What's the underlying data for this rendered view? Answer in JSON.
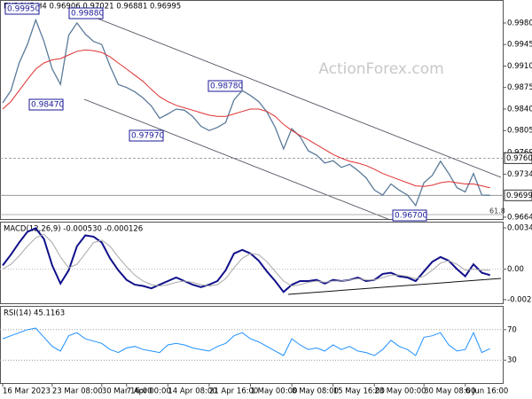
{
  "chart_data": [
    {
      "type": "line",
      "title": "EURCHF,H4  0.96906 0.97021 0.96881 0.96995",
      "watermark": "ActionForex.com",
      "categories": [
        "16 Mar 2023",
        null,
        null,
        null,
        null,
        null,
        "23 Mar 08:00",
        null,
        null,
        null,
        null,
        null,
        "30 Mar 16:00",
        null,
        null,
        "7 Apr 00:00",
        null,
        null,
        null,
        null,
        "14 Apr 08:00",
        null,
        null,
        null,
        null,
        "21 Apr 16:00",
        null,
        null,
        null,
        null,
        "1 May 00:00",
        null,
        null,
        null,
        null,
        "8 May 08:00",
        null,
        null,
        null,
        null,
        "15 May 16:00",
        null,
        null,
        null,
        null,
        "23 May 00:00",
        null,
        null,
        null,
        null,
        null,
        "30 May 08:00",
        null,
        null,
        null,
        null,
        "6 Jun 16:00",
        null,
        null,
        null
      ],
      "series": [
        {
          "color": "#5b7a99",
          "values": [
            0.985,
            0.987,
            0.9915,
            0.9945,
            0.9985,
            0.995,
            0.9905,
            0.988,
            0.996,
            0.998,
            0.9962,
            0.995,
            0.9945,
            0.991,
            0.988,
            0.9875,
            0.9868,
            0.9858,
            0.9845,
            0.9825,
            0.9832,
            0.984,
            0.9838,
            0.9828,
            0.9812,
            0.9805,
            0.981,
            0.9818,
            0.9855,
            0.987,
            0.9862,
            0.9852,
            0.9835,
            0.981,
            0.9775,
            0.9808,
            0.9795,
            0.9772,
            0.9765,
            0.9752,
            0.9756,
            0.9745,
            0.975,
            0.974,
            0.9728,
            0.9708,
            0.97,
            0.9718,
            0.9708,
            0.97,
            0.9683,
            0.972,
            0.9732,
            0.9755,
            0.9735,
            0.9712,
            0.9705,
            0.9735,
            0.97,
            0.96995
          ]
        },
        {
          "color": "#e03030",
          "values": [
            0.984,
            0.9852,
            0.987,
            0.9888,
            0.9905,
            0.9915,
            0.992,
            0.9922,
            0.9928,
            0.9934,
            0.9936,
            0.9935,
            0.9932,
            0.9925,
            0.9915,
            0.9905,
            0.9895,
            0.9885,
            0.9872,
            0.986,
            0.9852,
            0.9846,
            0.9842,
            0.9838,
            0.9834,
            0.983,
            0.9828,
            0.9828,
            0.9832,
            0.9836,
            0.984,
            0.984,
            0.9836,
            0.9828,
            0.9815,
            0.9805,
            0.9797,
            0.979,
            0.9782,
            0.9774,
            0.9766,
            0.976,
            0.9755,
            0.9752,
            0.9748,
            0.9742,
            0.9735,
            0.973,
            0.9725,
            0.972,
            0.9715,
            0.9714,
            0.9716,
            0.972,
            0.9722,
            0.972,
            0.9718,
            0.9718,
            0.9715,
            0.9712
          ]
        }
      ],
      "ylim": [
        0.9661,
        1.0016
      ],
      "yticks": [
        {
          "value": 0.998,
          "label": "0.99800"
        },
        {
          "value": 0.9945,
          "label": "0.99450"
        },
        {
          "value": 0.991,
          "label": "0.99100"
        },
        {
          "value": 0.9875,
          "label": "0.98750"
        },
        {
          "value": 0.984,
          "label": "0.98400"
        },
        {
          "value": 0.9805,
          "label": "0.98050"
        },
        {
          "value": 0.9769,
          "label": "0.97690"
        },
        {
          "value": 0.9734,
          "label": "0.97340"
        },
        {
          "value": 0.9664,
          "label": "0.96640"
        }
      ],
      "levels": [
        {
          "value": 0.976,
          "label": "0.97600"
        },
        {
          "value": 0.96995,
          "label": "0.96995"
        }
      ],
      "annotations": [
        "0.99950",
        "0.99880",
        "0.98470",
        "0.98780",
        "0.97970",
        "0.96700",
        "61.8"
      ]
    },
    {
      "type": "line",
      "title": "MACD(12,26,9) -0.000530 -0.000126",
      "series": [
        {
          "color": "#10108a",
          "values": [
            0.0003,
            0.0012,
            0.0022,
            0.0031,
            0.0034,
            0.0025,
            0.0003,
            -0.0012,
            -0.0001,
            0.0019,
            0.0028,
            0.0027,
            0.0022,
            0.0009,
            -0.0001,
            -0.0009,
            -0.0013,
            -0.0014,
            -0.0016,
            -0.0013,
            -0.001,
            -0.0007,
            -0.001,
            -0.0013,
            -0.0015,
            -0.0013,
            -0.001,
            -0.0001,
            0.0013,
            0.0016,
            0.0013,
            0.0007,
            -0.0002,
            -0.001,
            -0.0019,
            -0.0013,
            -0.001,
            -0.001,
            -0.0009,
            -0.0012,
            -0.0009,
            -0.001,
            -0.0009,
            -0.0007,
            -0.001,
            -0.0009,
            -0.0004,
            -0.0003,
            -0.0006,
            -0.0007,
            -0.001,
            -0.0002,
            0.0006,
            0.001,
            0.0007,
            0.0,
            -0.0006,
            0.0004,
            -0.0003,
            -0.0005
          ]
        },
        {
          "color": "#a8a8a8",
          "values": [
            0.0,
            0.0004,
            0.0011,
            0.0019,
            0.0026,
            0.0029,
            0.0022,
            0.001,
            0.0001,
            0.0004,
            0.0013,
            0.0022,
            0.0024,
            0.0019,
            0.001,
            0.0002,
            -0.0005,
            -0.001,
            -0.0013,
            -0.0014,
            -0.0013,
            -0.0011,
            -0.001,
            -0.0011,
            -0.0013,
            -0.0014,
            -0.0013,
            -0.0008,
            0.0001,
            0.0009,
            0.0013,
            0.0012,
            0.0006,
            -0.0002,
            -0.001,
            -0.0014,
            -0.0013,
            -0.0011,
            -0.001,
            -0.0011,
            -0.001,
            -0.001,
            -0.0009,
            -0.0008,
            -0.0009,
            -0.0009,
            -0.0007,
            -0.0005,
            -0.0005,
            -0.0006,
            -0.0008,
            -0.0006,
            -0.0001,
            0.0005,
            0.0007,
            0.0004,
            -0.0001,
            0.0,
            -0.0001,
            -0.0001
          ]
        }
      ],
      "ylim": [
        -0.00284,
        0.00387
      ],
      "yticks": [
        0.003425,
        {
          "value": 0,
          "label": "0.00"
        },
        -0.00254
      ]
    },
    {
      "type": "line",
      "title": "RSI(14) 45.1163",
      "series": [
        {
          "color": "#1e90ff",
          "values": [
            58,
            62,
            66,
            70,
            72,
            60,
            48,
            42,
            62,
            66,
            58,
            55,
            52,
            44,
            40,
            46,
            48,
            44,
            42,
            40,
            50,
            52,
            50,
            46,
            44,
            42,
            48,
            52,
            62,
            66,
            58,
            54,
            48,
            42,
            36,
            58,
            50,
            44,
            46,
            42,
            50,
            44,
            48,
            42,
            40,
            36,
            44,
            56,
            48,
            44,
            36,
            60,
            62,
            66,
            50,
            42,
            44,
            66,
            40,
            45.1163
          ]
        }
      ],
      "ylim": [
        0,
        100
      ],
      "yticks": [
        70,
        30
      ]
    }
  ]
}
